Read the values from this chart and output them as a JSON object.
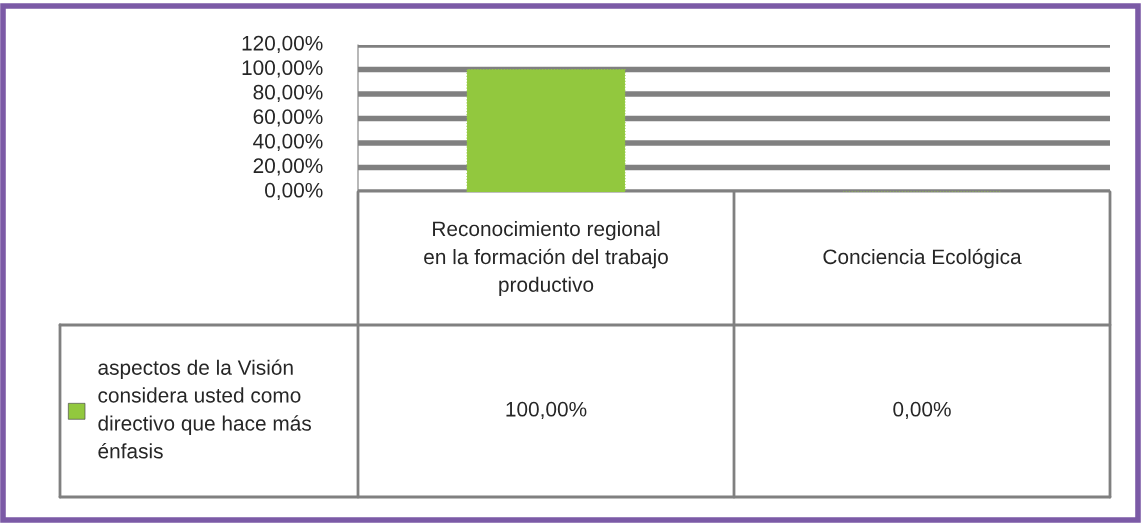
{
  "chart_data": {
    "type": "bar",
    "categories": [
      "Reconocimiento regional\nen la formación del trabajo\nproductivo",
      "Conciencia Ecológica"
    ],
    "series": [
      {
        "name": "aspectos de la Visión\nconsidera usted como\ndirectivo que hace más\nénfasis",
        "color": "#92c83e",
        "values": [
          100,
          0
        ],
        "value_labels": [
          "100,00%",
          "0,00%"
        ]
      }
    ],
    "ylim": [
      0,
      120
    ],
    "yticks": [
      {
        "value": 0,
        "label": "0,00%"
      },
      {
        "value": 20,
        "label": "20,00%"
      },
      {
        "value": 40,
        "label": "40,00%"
      },
      {
        "value": 60,
        "label": "60,00%"
      },
      {
        "value": 80,
        "label": "80,00%"
      },
      {
        "value": 100,
        "label": "100,00%"
      },
      {
        "value": 120,
        "label": "120,00%"
      }
    ],
    "grid": "y",
    "legend": "bottom left"
  }
}
